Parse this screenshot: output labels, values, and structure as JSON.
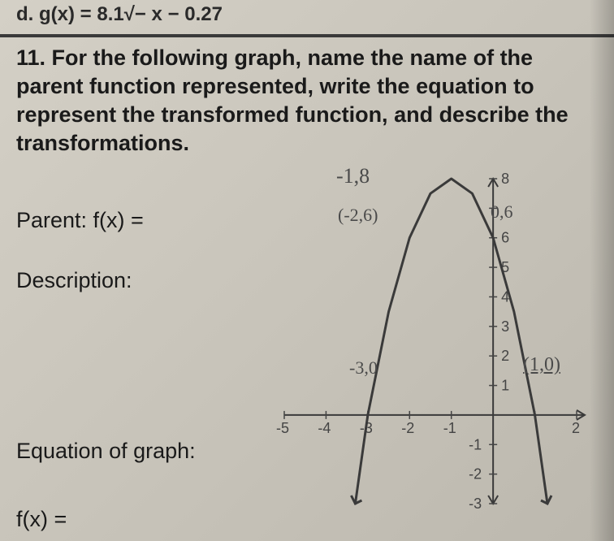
{
  "top_fragment": "d. g(x) = 8.1√− x − 0.27",
  "question": "11. For the following graph, name the name of the parent function represented, write the equation to represent the transformed function, and describe the transformations.",
  "labels": {
    "parent": "Parent: f(x) =",
    "description": "Description:",
    "equation_graph": "Equation of graph:",
    "fx": "f(x) ="
  },
  "annotations": {
    "vertex": "-1,8",
    "left_pt": "(-2,6)",
    "right_pt": "0,6",
    "x_int_left": "-3,0",
    "x_int_right": "(1,0)"
  },
  "graph": {
    "type": "scatter-with-parabola",
    "xlim": [
      -5,
      2
    ],
    "ylim": [
      -3,
      8
    ],
    "xtick_step": 1,
    "ytick_step": 1,
    "axis_color": "#3a3a3a",
    "curve_color": "#3a3a3a",
    "tick_color": "#444444",
    "label_color": "#444444",
    "background_color": "transparent",
    "curve_width": 3,
    "vertex": [
      -1,
      8
    ],
    "a": -2,
    "curve_points": [
      [
        -3.3,
        -3
      ],
      [
        -3,
        0
      ],
      [
        -2.5,
        3.5
      ],
      [
        -2,
        6
      ],
      [
        -1.5,
        7.5
      ],
      [
        -1,
        8
      ],
      [
        -0.5,
        7.5
      ],
      [
        0,
        6
      ],
      [
        0.5,
        3.5
      ],
      [
        1,
        0
      ],
      [
        1.3,
        -3
      ]
    ],
    "x_labels": [
      "-5",
      "-4",
      "-3",
      "-2",
      "-1",
      "",
      "2"
    ],
    "y_labels": [
      "8",
      "7",
      "6",
      "5",
      "4",
      "3",
      "2",
      "1",
      "-1",
      "-2",
      "-3"
    ],
    "label_fontsize": 18
  }
}
